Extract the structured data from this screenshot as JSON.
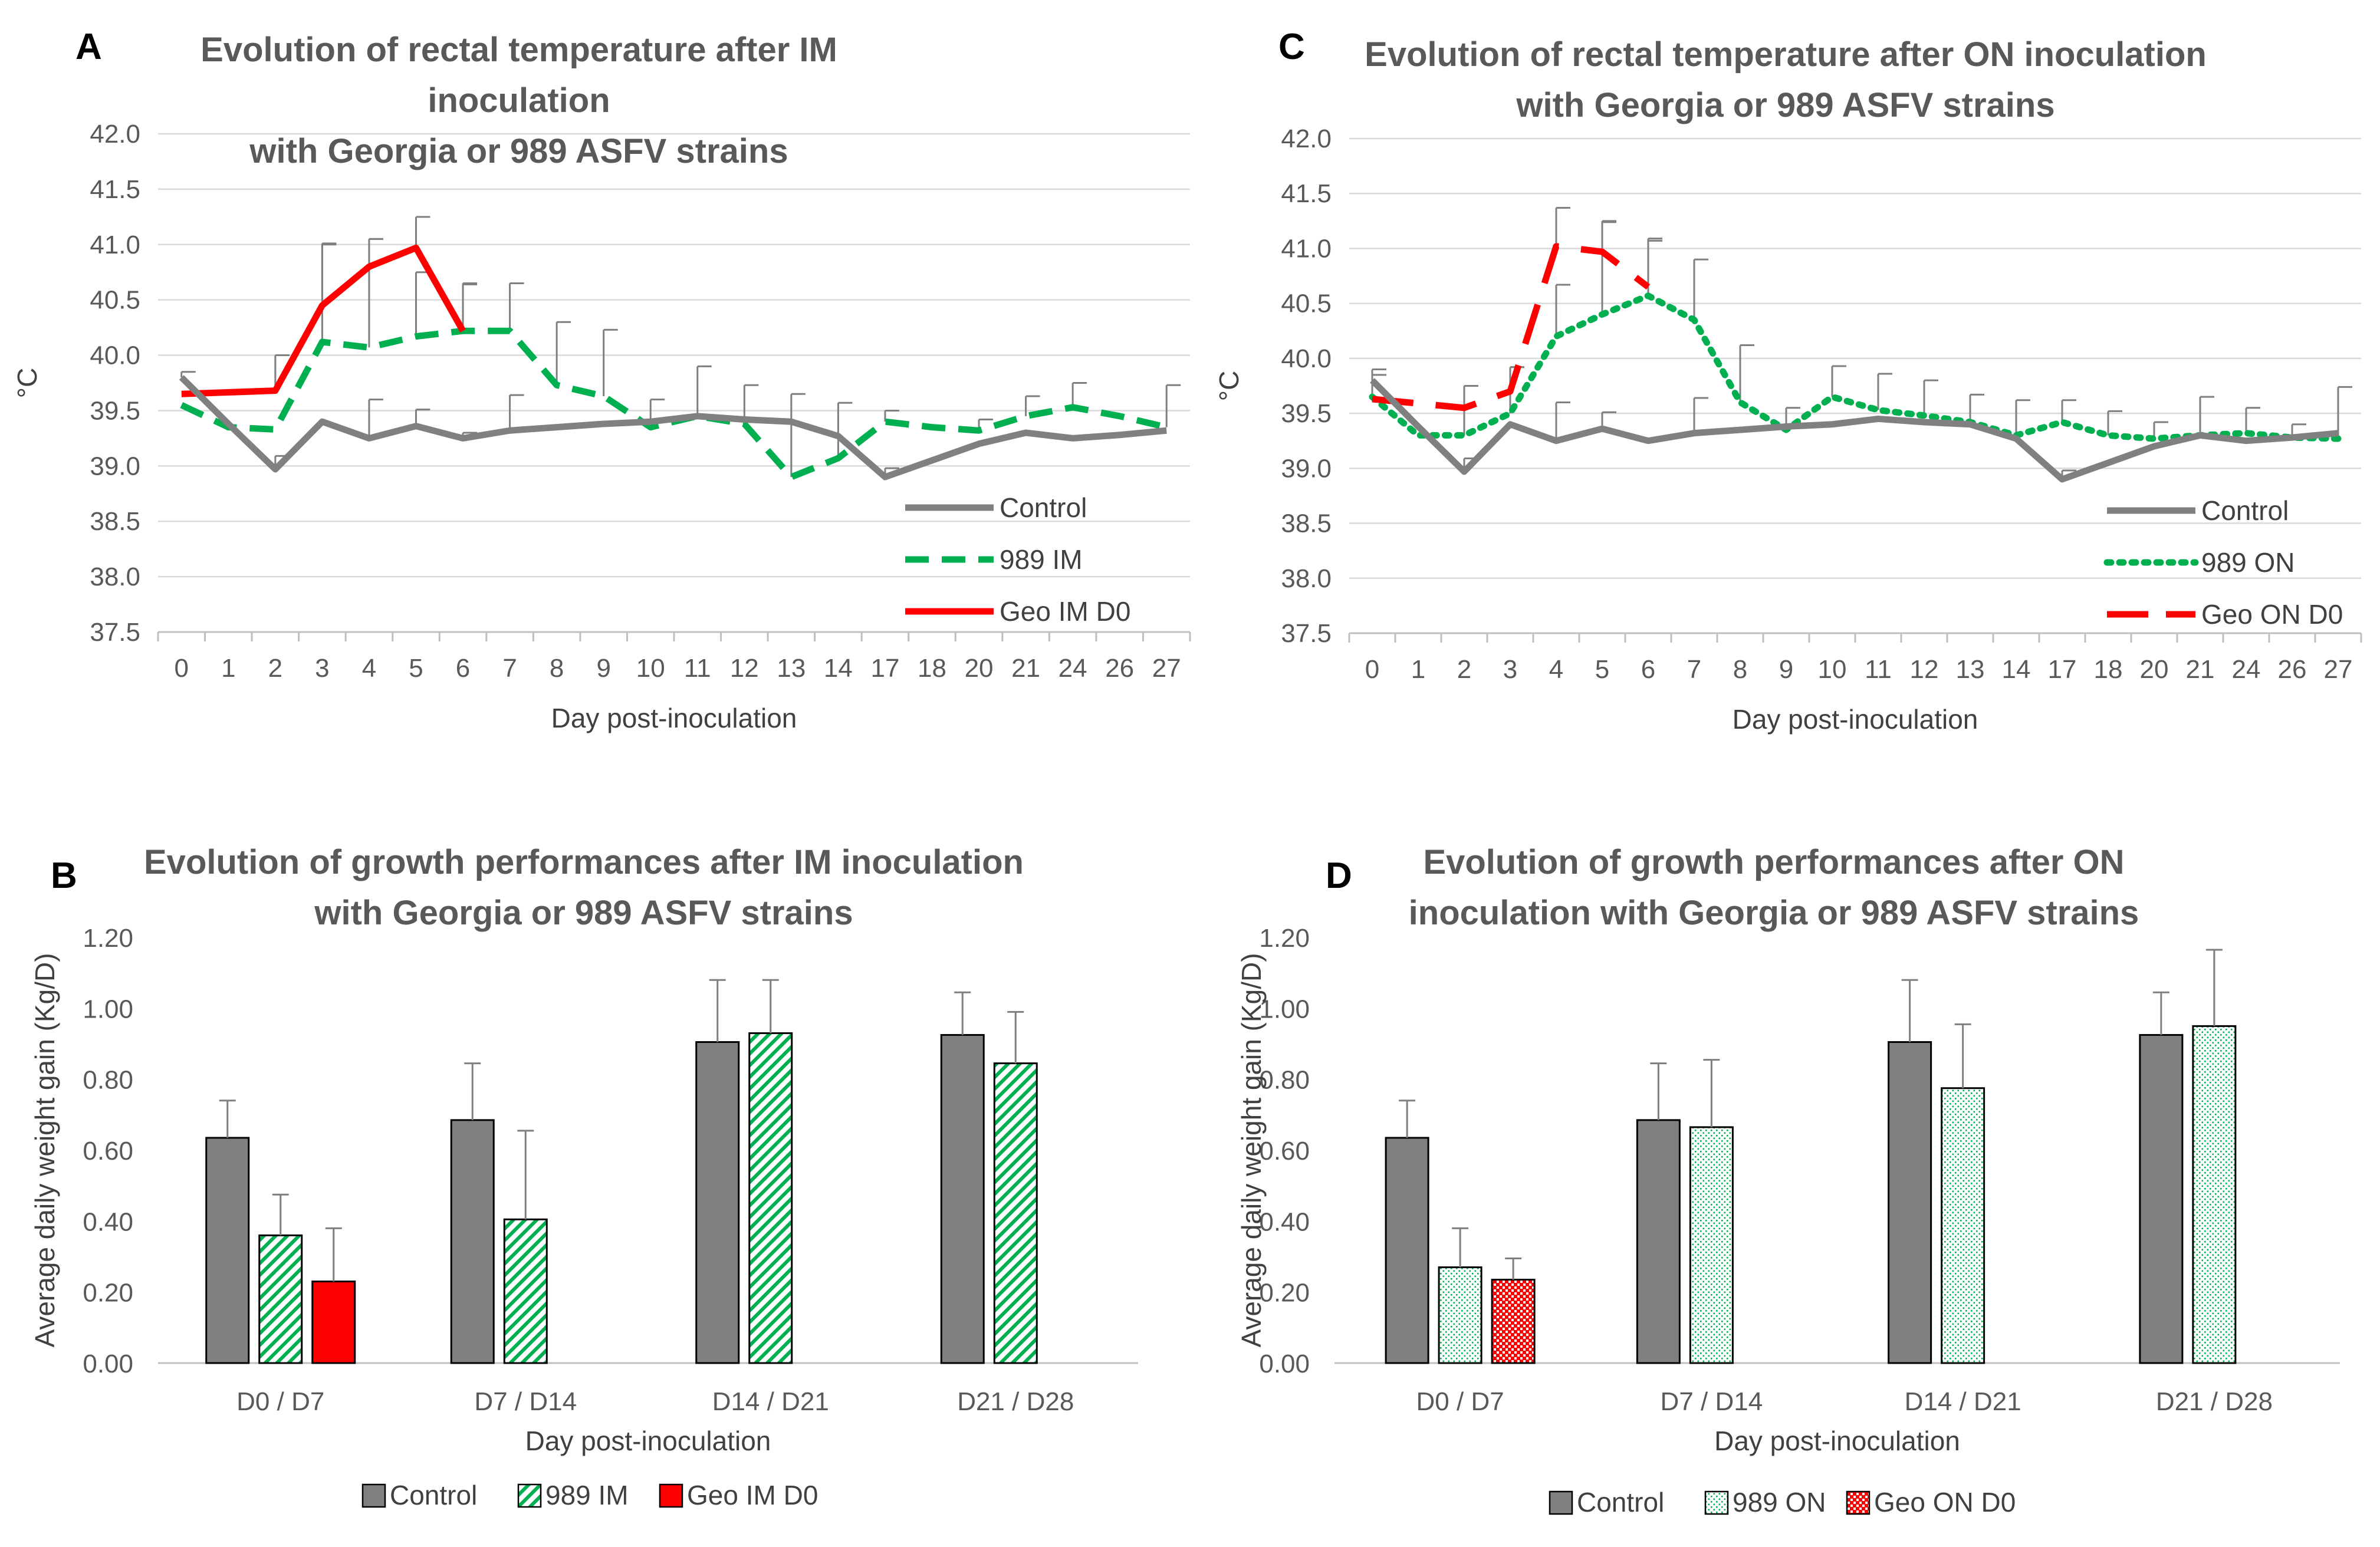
{
  "figure_caption": "",
  "chart_data": [
    {
      "id": "A",
      "panel_label": "A",
      "type": "line",
      "title_line1": "Evolution of rectal temperature after IM inoculation",
      "title_line2": "with Georgia or 989 ASFV strains",
      "xlabel": "Day post-inoculation",
      "ylabel": "°C",
      "ylim": [
        37.5,
        42.0
      ],
      "yticks": [
        "37.5",
        "38.0",
        "38.5",
        "39.0",
        "39.5",
        "40.0",
        "40.5",
        "41.0",
        "41.5",
        "42.0"
      ],
      "categories": [
        "0",
        "1",
        "2",
        "3",
        "4",
        "5",
        "6",
        "7",
        "8",
        "9",
        "10",
        "11",
        "12",
        "13",
        "14",
        "17",
        "18",
        "20",
        "21",
        "24",
        "26",
        "27"
      ],
      "legend_position": "bottom-right",
      "series": [
        {
          "name": "Control",
          "color": "#808080",
          "style": "solid",
          "values": [
            39.8,
            39.38,
            38.97,
            39.4,
            39.25,
            39.36,
            39.25,
            39.32,
            39.35,
            39.38,
            39.4,
            39.45,
            39.42,
            39.4,
            39.27,
            38.9,
            39.05,
            39.2,
            39.3,
            39.25,
            39.28,
            39.32
          ],
          "errors": [
            0.05,
            0,
            0.12,
            0,
            0.35,
            0.15,
            0.05,
            0.32,
            0,
            0,
            0,
            0,
            0,
            0,
            0,
            0.08,
            0,
            0,
            0,
            0,
            0,
            0
          ]
        },
        {
          "name": "989 IM",
          "color": "#00B050",
          "style": "dashed",
          "values": [
            39.55,
            39.35,
            39.33,
            40.12,
            40.07,
            40.17,
            40.22,
            40.22,
            39.73,
            39.63,
            39.35,
            39.45,
            39.38,
            38.9,
            39.07,
            39.4,
            39.35,
            39.32,
            39.45,
            39.53,
            39.45,
            39.35
          ],
          "errors": [
            0,
            0,
            0,
            0.88,
            0.98,
            0.58,
            0.43,
            0.43,
            0.57,
            0.6,
            0.25,
            0.45,
            0.35,
            0.75,
            0.5,
            0.1,
            0,
            0.1,
            0.18,
            0.22,
            0,
            0.38
          ]
        },
        {
          "name": "Geo IM D0",
          "color": "#FF0000",
          "style": "solid",
          "values": [
            39.65,
            null,
            39.68,
            40.45,
            40.8,
            40.97,
            40.22,
            null,
            null,
            null,
            null,
            null,
            null,
            null,
            null,
            null,
            null,
            null,
            null,
            null,
            null,
            null
          ],
          "errors": [
            0,
            0,
            0.32,
            0.56,
            0.25,
            0.28,
            0.42,
            0,
            0,
            0,
            0,
            0,
            0,
            0,
            0,
            0,
            0,
            0,
            0,
            0,
            0,
            0
          ]
        }
      ]
    },
    {
      "id": "C",
      "panel_label": "C",
      "type": "line",
      "title_line1": "Evolution of rectal temperature after ON inoculation",
      "title_line2": "with Georgia or 989 ASFV strains",
      "xlabel": "Day post-inoculation",
      "ylabel": "°C",
      "ylim": [
        37.5,
        42.0
      ],
      "yticks": [
        "37.5",
        "38.0",
        "38.5",
        "39.0",
        "39.5",
        "40.0",
        "40.5",
        "41.0",
        "41.5",
        "42.0"
      ],
      "categories": [
        "0",
        "1",
        "2",
        "3",
        "4",
        "5",
        "6",
        "7",
        "8",
        "9",
        "10",
        "11",
        "12",
        "13",
        "14",
        "17",
        "18",
        "20",
        "21",
        "24",
        "26",
        "27"
      ],
      "legend_position": "bottom-right",
      "series": [
        {
          "name": "Control",
          "color": "#808080",
          "style": "solid",
          "values": [
            39.8,
            39.38,
            38.97,
            39.4,
            39.25,
            39.36,
            39.25,
            39.32,
            39.35,
            39.38,
            39.4,
            39.45,
            39.42,
            39.4,
            39.27,
            38.9,
            39.05,
            39.2,
            39.3,
            39.25,
            39.28,
            39.32
          ],
          "errors": [
            0.1,
            0,
            0.12,
            0,
            0.35,
            0.15,
            0,
            0.32,
            0,
            0,
            0,
            0,
            0,
            0,
            0,
            0.08,
            0,
            0,
            0,
            0,
            0,
            0
          ]
        },
        {
          "name": "989 ON",
          "color": "#00B050",
          "style": "dotted",
          "values": [
            39.65,
            39.3,
            39.3,
            39.5,
            40.2,
            40.4,
            40.57,
            40.35,
            39.6,
            39.35,
            39.65,
            39.53,
            39.48,
            39.42,
            39.3,
            39.42,
            39.3,
            39.27,
            39.3,
            39.32,
            39.28,
            39.27
          ],
          "errors": [
            0.2,
            0,
            0.45,
            0.42,
            0.47,
            0.85,
            0.52,
            0.55,
            0.52,
            0.2,
            0.28,
            0.33,
            0.32,
            0.25,
            0.32,
            0.2,
            0.22,
            0.15,
            0.35,
            0.23,
            0.12,
            0.47
          ]
        },
        {
          "name": "Geo ON D0",
          "color": "#FF0000",
          "style": "longdash",
          "values": [
            39.63,
            null,
            39.55,
            39.7,
            41.02,
            40.97,
            40.65,
            null,
            null,
            null,
            null,
            null,
            null,
            null,
            null,
            null,
            null,
            null,
            null,
            null,
            null,
            null
          ],
          "errors": [
            0,
            0,
            0.2,
            0.22,
            0.35,
            0.27,
            0.42,
            0,
            0,
            0,
            0,
            0,
            0,
            0,
            0,
            0,
            0,
            0,
            0,
            0,
            0,
            0
          ]
        }
      ]
    },
    {
      "id": "B",
      "panel_label": "B",
      "type": "bar",
      "title_line1": "Evolution of growth performances after IM inoculation",
      "title_line2": "with Georgia or 989 ASFV strains",
      "xlabel": "Day post-inoculation",
      "ylabel": "Average daily weight gain  (Kg/D)",
      "ylim": [
        0,
        1.2
      ],
      "yticks": [
        "0.00",
        "0.20",
        "0.40",
        "0.60",
        "0.80",
        "1.00",
        "1.20"
      ],
      "categories": [
        "D0 / D7",
        "D7 / D14",
        "D14 / D21",
        "D21 / D28"
      ],
      "legend_position": "bottom",
      "series": [
        {
          "name": "Control",
          "color": "#808080",
          "pattern": "solid",
          "values": [
            0.635,
            0.685,
            0.905,
            0.925
          ],
          "errors": [
            0.105,
            0.16,
            0.175,
            0.12
          ]
        },
        {
          "name": "989 IM",
          "color": "#00B050",
          "pattern": "hatch",
          "values": [
            0.36,
            0.405,
            0.93,
            0.845
          ],
          "errors": [
            0.115,
            0.25,
            0.15,
            0.145
          ]
        },
        {
          "name": "Geo IM D0",
          "color": "#FF0000",
          "pattern": "solid",
          "values": [
            0.23,
            null,
            null,
            null
          ],
          "errors": [
            0.15,
            0,
            0,
            0
          ]
        }
      ]
    },
    {
      "id": "D",
      "panel_label": "D",
      "type": "bar",
      "title_line1": "Evolution of growth performances after ON",
      "title_line2": "inoculation with Georgia or 989 ASFV strains",
      "xlabel": "Day post-inoculation",
      "ylabel": "Average daily weight gain  (Kg/D)",
      "ylim": [
        0,
        1.2
      ],
      "yticks": [
        "0.00",
        "0.20",
        "0.40",
        "0.60",
        "0.80",
        "1.00",
        "1.20"
      ],
      "categories": [
        "D0 / D7",
        "D7 / D14",
        "D14 / D21",
        "D21 / D28"
      ],
      "legend_position": "bottom",
      "series": [
        {
          "name": "Control",
          "color": "#808080",
          "pattern": "solid",
          "values": [
            0.635,
            0.685,
            0.905,
            0.925
          ],
          "errors": [
            0.105,
            0.16,
            0.175,
            0.12
          ]
        },
        {
          "name": "989 ON",
          "color": "#00B050",
          "pattern": "dots",
          "values": [
            0.27,
            0.665,
            0.775,
            0.95
          ],
          "errors": [
            0.11,
            0.19,
            0.18,
            0.215
          ]
        },
        {
          "name": "Geo ON D0",
          "color": "#FF0000",
          "pattern": "check",
          "values": [
            0.235,
            null,
            null,
            null
          ],
          "errors": [
            0.06,
            0,
            0,
            0
          ]
        }
      ]
    }
  ]
}
